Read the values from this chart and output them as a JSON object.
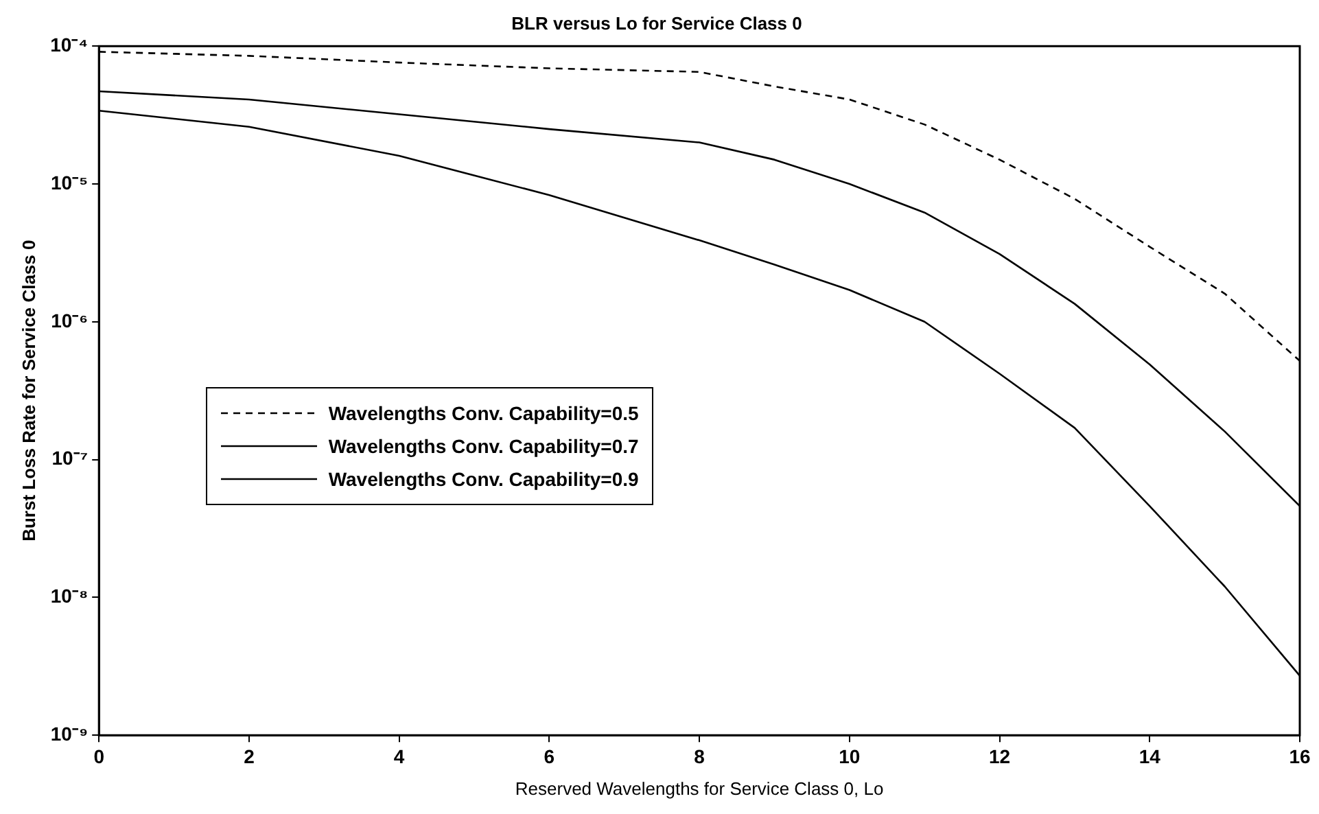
{
  "chart_data": {
    "type": "line",
    "title": "BLR versus Lo for Service Class 0",
    "xlabel": "Reserved Wavelengths for Service Class 0, Lo",
    "ylabel": "Burst Loss Rate for Service Class 0",
    "x": [
      0,
      2,
      4,
      6,
      8,
      9,
      10,
      11,
      12,
      13,
      14,
      15,
      16
    ],
    "series": [
      {
        "name": "Wavelengths Conv. Capability=0.5",
        "color": "#000000",
        "line_style": "dashed",
        "values": [
          9.1e-05,
          8.5e-05,
          7.6e-05,
          6.9e-05,
          6.5e-05,
          5.1e-05,
          4.1e-05,
          2.7e-05,
          1.5e-05,
          7.8e-06,
          3.5e-06,
          1.6e-06,
          5.2e-07
        ]
      },
      {
        "name": "Wavelengths Conv. Capability=0.7",
        "color": "#000000",
        "line_style": "solid",
        "values": [
          4.7e-05,
          4.1e-05,
          3.2e-05,
          2.5e-05,
          2e-05,
          1.5e-05,
          1e-05,
          6.2e-06,
          3.1e-06,
          1.35e-06,
          4.9e-07,
          1.6e-07,
          4.6e-08
        ]
      },
      {
        "name": "Wavelengths Conv. Capability=0.9",
        "color": "#000000",
        "line_style": "solid",
        "values": [
          3.4e-05,
          2.6e-05,
          1.6e-05,
          8.3e-06,
          3.9e-06,
          2.6e-06,
          1.7e-06,
          1e-06,
          4.2e-07,
          1.7e-07,
          4.6e-08,
          1.2e-08,
          2.7e-09
        ]
      }
    ],
    "xlim": [
      0,
      16
    ],
    "xticks": [
      0,
      2,
      4,
      6,
      8,
      10,
      12,
      14,
      16
    ],
    "ylim": [
      1e-09,
      0.0001
    ],
    "yticks": [
      {
        "value": 1e-09,
        "label": "10⁻⁹"
      },
      {
        "value": 1e-08,
        "label": "10⁻⁸"
      },
      {
        "value": 1e-07,
        "label": "10⁻⁷"
      },
      {
        "value": 1e-06,
        "label": "10⁻⁶"
      },
      {
        "value": 1e-05,
        "label": "10⁻⁵"
      },
      {
        "value": 0.0001,
        "label": "10⁻⁴"
      }
    ],
    "log": "y",
    "grid": false,
    "legend": "left",
    "marker": "none"
  }
}
